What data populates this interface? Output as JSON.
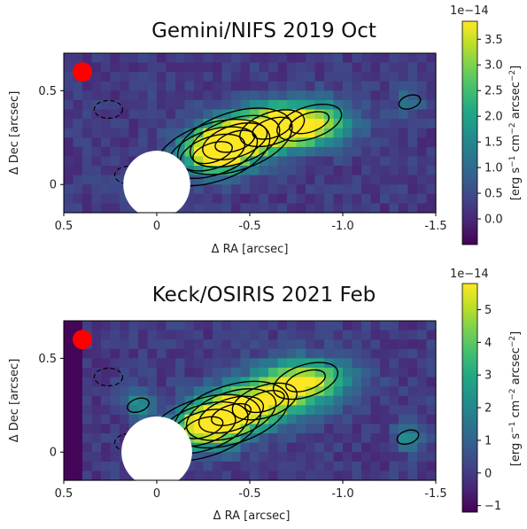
{
  "chart_data": [
    {
      "type": "heatmap",
      "title": "Gemini/NIFS 2019 Oct",
      "xlabel": "Δ RA [arcsec]",
      "ylabel": "Δ Dec [arcsec]",
      "xlim": [
        0.5,
        -1.5
      ],
      "ylim": [
        -0.15,
        0.7
      ],
      "x_ticks": [
        0.5,
        0,
        -0.5,
        -1.0,
        -1.5
      ],
      "x_tick_labels": [
        "0.5",
        "0",
        "-0.5",
        "-1.0",
        "-1.5"
      ],
      "y_ticks": [
        0,
        0.5
      ],
      "y_tick_labels": [
        "0",
        "0.5"
      ],
      "colorbar": {
        "label": "[erg s⁻¹ cm⁻² arcsec⁻²]",
        "offset": "1e−14",
        "range": [
          -0.5,
          3.85
        ],
        "ticks": [
          0.0,
          0.5,
          1.0,
          1.5,
          2.0,
          2.5,
          3.0,
          3.5
        ],
        "tick_labels": [
          "0.0",
          "0.5",
          "1.0",
          "1.5",
          "2.0",
          "2.5",
          "3.0",
          "3.5"
        ],
        "colormap": "viridis"
      },
      "beam_marker": {
        "x": 0.4,
        "y": 0.6,
        "color": "#ff0000"
      },
      "occulted_region": {
        "x": 0,
        "y": 0,
        "radius": 0.18,
        "color": "#ffffff"
      },
      "emission_features": [
        {
          "kind": "core",
          "x": -0.3,
          "y": 0.17,
          "peak": 3.85
        },
        {
          "kind": "core",
          "x": -0.42,
          "y": 0.23,
          "peak": 3.85
        },
        {
          "kind": "lobe",
          "x": -0.62,
          "y": 0.3,
          "peak": 3.6
        },
        {
          "kind": "lobe",
          "x": -0.82,
          "y": 0.33,
          "peak": 3.0
        },
        {
          "kind": "knot",
          "x": -1.36,
          "y": 0.44,
          "peak": 1.2
        }
      ]
    },
    {
      "type": "heatmap",
      "title": "Keck/OSIRIS 2021 Feb",
      "xlabel": "Δ RA [arcsec]",
      "ylabel": "Δ Dec [arcsec]",
      "xlim": [
        0.5,
        -1.5
      ],
      "ylim": [
        -0.15,
        0.7
      ],
      "x_ticks": [
        0.5,
        0,
        -0.5,
        -1.0,
        -1.5
      ],
      "x_tick_labels": [
        "0.5",
        "0",
        "-0.5",
        "-1.0",
        "-1.5"
      ],
      "y_ticks": [
        0,
        0.5
      ],
      "y_tick_labels": [
        "0",
        "0.5"
      ],
      "colorbar": {
        "label": "[erg s⁻¹ cm⁻² arcsec⁻²]",
        "offset": "1e−14",
        "range": [
          -1.2,
          5.8
        ],
        "ticks": [
          -1,
          0,
          1,
          2,
          3,
          4,
          5
        ],
        "tick_labels": [
          "−1",
          "0",
          "1",
          "2",
          "3",
          "4",
          "5"
        ],
        "colormap": "viridis"
      },
      "beam_marker": {
        "x": 0.4,
        "y": 0.6,
        "color": "#ff0000"
      },
      "occulted_region": {
        "x": 0,
        "y": 0,
        "radius": 0.19,
        "color": "#ffffff"
      },
      "emission_features": [
        {
          "kind": "core",
          "x": -0.25,
          "y": 0.13,
          "peak": 5.8
        },
        {
          "kind": "core",
          "x": -0.4,
          "y": 0.2,
          "peak": 5.5
        },
        {
          "kind": "lobe",
          "x": -0.58,
          "y": 0.27,
          "peak": 4.5
        },
        {
          "kind": "lobe",
          "x": -0.8,
          "y": 0.38,
          "peak": 5.4
        },
        {
          "kind": "knot",
          "x": -1.35,
          "y": 0.08,
          "peak": 2.2
        },
        {
          "kind": "knot",
          "x": 0.1,
          "y": 0.25,
          "peak": 2.4
        }
      ]
    }
  ]
}
